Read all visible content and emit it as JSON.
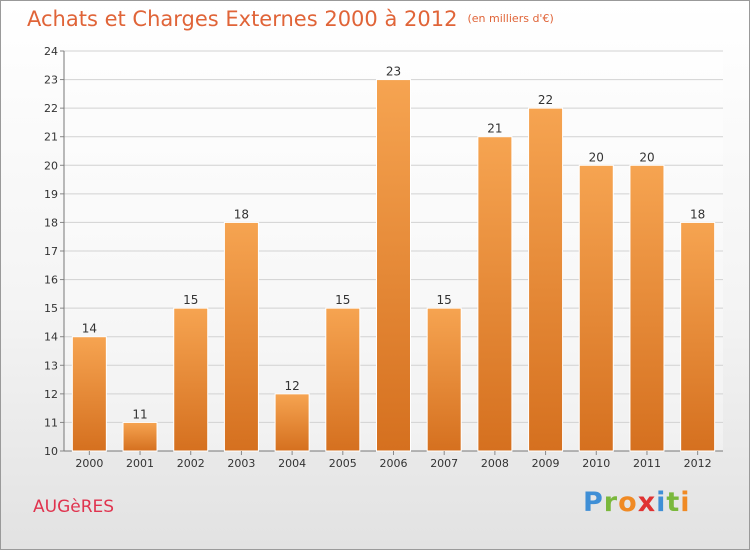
{
  "title": "Achats et Charges Externes 2000 à 2012",
  "unit": "(en milliers d'€)",
  "commune": "AUGèRES",
  "logo": {
    "text": "Proxiti",
    "letters": [
      "P",
      "r",
      "o",
      "x",
      "i",
      "t",
      "i"
    ],
    "colors": [
      "#3f8fd6",
      "#7ab83c",
      "#f08a24",
      "#e03232",
      "#3f8fd6",
      "#7ab83c",
      "#f08a24"
    ]
  },
  "colors": {
    "bar": "#f0923a",
    "title": "#e06438",
    "commune": "#e0334e"
  },
  "chart_data": {
    "type": "bar",
    "categories": [
      "2000",
      "2001",
      "2002",
      "2003",
      "2004",
      "2005",
      "2006",
      "2007",
      "2008",
      "2009",
      "2010",
      "2011",
      "2012"
    ],
    "values": [
      14,
      11,
      15,
      18,
      12,
      15,
      23,
      15,
      21,
      22,
      20,
      20,
      18
    ],
    "value_labels": [
      "14",
      "11",
      "15",
      "18",
      "12",
      "15",
      "23",
      "15",
      "21",
      "22",
      "20",
      "20",
      "18"
    ],
    "y_ticks": [
      "10",
      "11",
      "12",
      "13",
      "14",
      "15",
      "16",
      "17",
      "18",
      "19",
      "20",
      "21",
      "22",
      "23",
      "24"
    ],
    "ylim": [
      10,
      24
    ],
    "grid": true,
    "xlabel": "",
    "ylabel": ""
  }
}
